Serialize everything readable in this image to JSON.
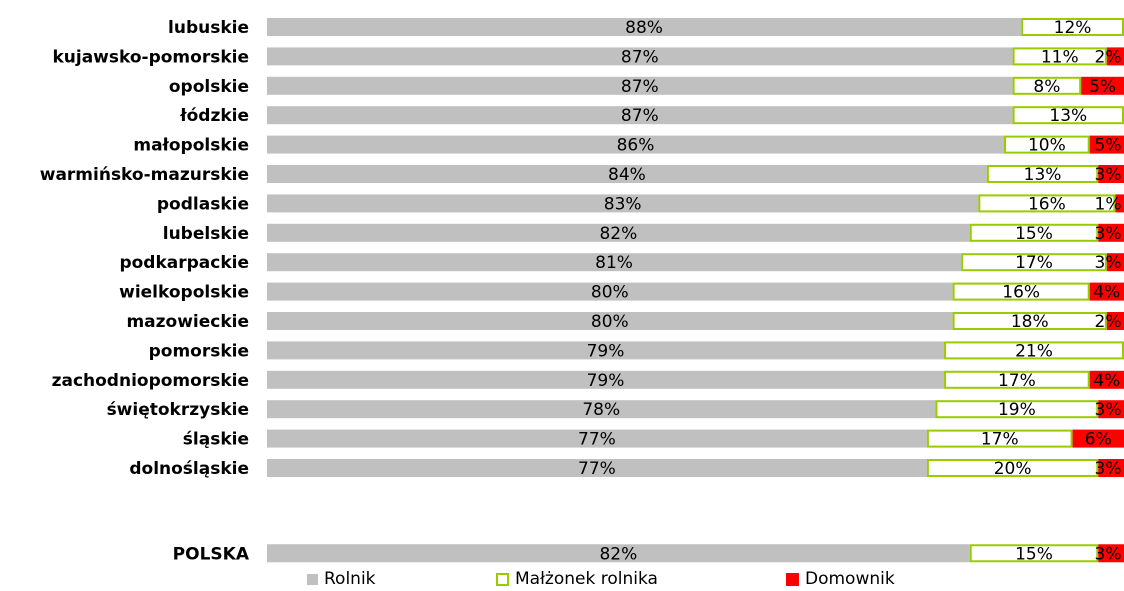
{
  "chart_data": {
    "type": "bar",
    "orientation": "horizontal",
    "stacked": true,
    "xlim": [
      0,
      100
    ],
    "categories": [
      "lubuskie",
      "kujawsko-pomorskie",
      "opolskie",
      "łódzkie",
      "małopolskie",
      "warmińsko-mazurskie",
      "podlaskie",
      "lubelskie",
      "podkarpackie",
      "wielkopolskie",
      "mazowieckie",
      "pomorskie",
      "zachodniopomorskie",
      "świętokrzyskie",
      "śląskie",
      "dolnośląskie",
      "POLSKA"
    ],
    "series": [
      {
        "name": "Rolnik",
        "values": [
          88,
          87,
          87,
          87,
          86,
          84,
          83,
          82,
          81,
          80,
          80,
          79,
          79,
          78,
          77,
          77,
          82
        ],
        "labels": [
          "88%",
          "87%",
          "87%",
          "87%",
          "86%",
          "84%",
          "83%",
          "82%",
          "81%",
          "80%",
          "80%",
          "79%",
          "79%",
          "78%",
          "77%",
          "77%",
          "82%"
        ]
      },
      {
        "name": "Małżonek rolnika",
        "values": [
          12,
          11,
          8,
          13,
          10,
          13,
          16,
          15,
          17,
          16,
          18,
          21,
          17,
          19,
          17,
          20,
          15
        ],
        "labels": [
          "12%",
          "11%",
          "8%",
          "13%",
          "10%",
          "13%",
          "16%",
          "15%",
          "17%",
          "16%",
          "18%",
          "21%",
          "17%",
          "19%",
          "17%",
          "20%",
          "15%"
        ]
      },
      {
        "name": "Domownik",
        "values": [
          0,
          2,
          5,
          0,
          5,
          3,
          1,
          3,
          3,
          4,
          2,
          0,
          4,
          3,
          6,
          3,
          3
        ],
        "labels": [
          "",
          "2%",
          "5%",
          "",
          "5%",
          "3%",
          "1%",
          "3%",
          "3%",
          "4%",
          "2%",
          "",
          "4%",
          "3%",
          "6%",
          "3%",
          "3%"
        ]
      }
    ],
    "colors": {
      "Rolnik": "#c0c0c0",
      "Małżonek rolnika": "#99cc00",
      "Domownik": "#ff0000"
    },
    "legend_position": "bottom",
    "grid": false
  }
}
